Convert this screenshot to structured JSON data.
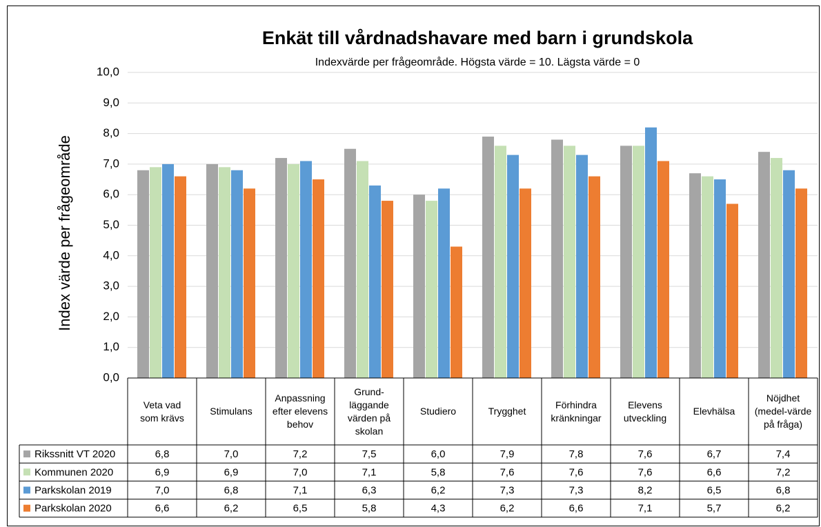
{
  "chart_data": {
    "type": "bar",
    "title": "Enkät till vårdnadshavare med barn i grundskola",
    "subtitle": "Indexvärde per frågeområde. Högsta värde = 10. Lägsta värde = 0",
    "y_label": "Index värde per frågeområde",
    "categories": [
      "Veta vad som krävs",
      "Stimulans",
      "Anpassning efter elevens behov",
      "Grund-läggande värden på skolan",
      "Studiero",
      "Trygghet",
      "Förhindra kränkningar",
      "Elevens utveckling",
      "Elevhälsa",
      "Nöjdhet (medel-värde på fråga)"
    ],
    "series": [
      {
        "name": "Rikssnitt VT 2020",
        "color": "#a5a5a5",
        "values": [
          6.8,
          7.0,
          7.2,
          7.5,
          6.0,
          7.9,
          7.8,
          7.6,
          6.7,
          7.4
        ],
        "value_labels": [
          "6,8",
          "7,0",
          "7,2",
          "7,5",
          "6,0",
          "7,9",
          "7,8",
          "7,6",
          "6,7",
          "7,4"
        ]
      },
      {
        "name": "Kommunen 2020",
        "color": "#c5e0b4",
        "values": [
          6.9,
          6.9,
          7.0,
          7.1,
          5.8,
          7.6,
          7.6,
          7.6,
          6.6,
          7.2
        ],
        "value_labels": [
          "6,9",
          "6,9",
          "7,0",
          "7,1",
          "5,8",
          "7,6",
          "7,6",
          "7,6",
          "6,6",
          "7,2"
        ]
      },
      {
        "name": "Parkskolan 2019",
        "color": "#5b9bd5",
        "values": [
          7.0,
          6.8,
          7.1,
          6.3,
          6.2,
          7.3,
          7.3,
          8.2,
          6.5,
          6.8
        ],
        "value_labels": [
          "7,0",
          "6,8",
          "7,1",
          "6,3",
          "6,2",
          "7,3",
          "7,3",
          "8,2",
          "6,5",
          "6,8"
        ]
      },
      {
        "name": "Parkskolan 2020",
        "color": "#ed7d31",
        "values": [
          6.6,
          6.2,
          6.5,
          5.8,
          4.3,
          6.2,
          6.6,
          7.1,
          5.7,
          6.2
        ],
        "value_labels": [
          "6,6",
          "6,2",
          "6,5",
          "5,8",
          "4,3",
          "6,2",
          "6,6",
          "7,1",
          "5,7",
          "6,2"
        ]
      }
    ],
    "ylim": [
      0,
      10
    ],
    "yticks": [
      {
        "value": 0,
        "label": "0,0"
      },
      {
        "value": 1,
        "label": "1,0"
      },
      {
        "value": 2,
        "label": "2,0"
      },
      {
        "value": 3,
        "label": "3,0"
      },
      {
        "value": 4,
        "label": "4,0"
      },
      {
        "value": 5,
        "label": "5,0"
      },
      {
        "value": 6,
        "label": "6,0"
      },
      {
        "value": 7,
        "label": "7,0"
      },
      {
        "value": 8,
        "label": "8,0"
      },
      {
        "value": 9,
        "label": "9,0"
      },
      {
        "value": 10,
        "label": "10,0"
      }
    ],
    "grid": true,
    "legend": "table"
  }
}
